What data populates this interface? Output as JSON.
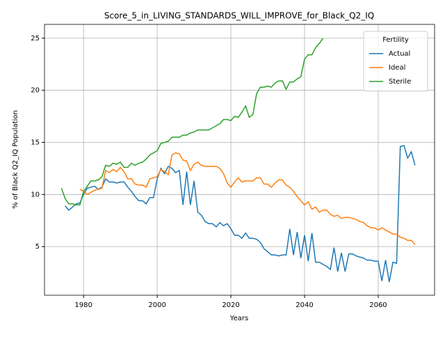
{
  "chart_data": {
    "type": "line",
    "title": "Score_5_in_LIVING_STANDARDS_WILL_IMPROVE_for_Black_Q2_IQ",
    "xlabel": "Years",
    "ylabel": "% of Black Q2_IQ Population",
    "x": [
      1974,
      1975,
      1976,
      1977,
      1978,
      1979,
      1980,
      1981,
      1982,
      1983,
      1984,
      1985,
      1986,
      1987,
      1988,
      1989,
      1990,
      1991,
      1992,
      1993,
      1994,
      1995,
      1996,
      1997,
      1998,
      1999,
      2000,
      2001,
      2002,
      2003,
      2004,
      2005,
      2006,
      2007,
      2008,
      2009,
      2010,
      2011,
      2012,
      2013,
      2014,
      2015,
      2016,
      2017,
      2018,
      2019,
      2020,
      2021,
      2022,
      2023,
      2024,
      2025,
      2026,
      2027,
      2028,
      2029,
      2030,
      2031,
      2032,
      2033,
      2034,
      2035,
      2036,
      2037,
      2038,
      2039,
      2040,
      2041,
      2042,
      2043,
      2044,
      2045,
      2046,
      2047,
      2048,
      2049,
      2050,
      2051,
      2052,
      2053,
      2054,
      2055,
      2056,
      2057,
      2058,
      2059,
      2060,
      2061,
      2062,
      2063,
      2064,
      2065,
      2066,
      2067,
      2068,
      2069,
      2070
    ],
    "series": [
      {
        "name": "Actual",
        "color": "#1f77b4",
        "values": [
          null,
          8.9,
          8.5,
          8.8,
          9.1,
          9.2,
          10.0,
          10.6,
          10.7,
          10.8,
          10.5,
          10.7,
          11.5,
          11.2,
          11.2,
          11.1,
          11.2,
          11.2,
          10.7,
          10.3,
          9.8,
          9.4,
          9.4,
          9.1,
          9.7,
          9.7,
          11.5,
          12.5,
          12.0,
          12.7,
          12.5,
          12.1,
          12.3,
          9.0,
          12.2,
          9.0,
          11.3,
          8.3,
          8.0,
          7.4,
          7.2,
          7.2,
          6.9,
          7.3,
          7.0,
          7.2,
          6.7,
          6.1,
          6.1,
          5.8,
          6.3,
          5.8,
          5.8,
          5.7,
          5.4,
          4.8,
          4.5,
          4.2,
          4.2,
          4.1,
          4.2,
          4.2,
          6.7,
          4.2,
          6.4,
          3.9,
          6.1,
          3.6,
          6.3,
          3.5,
          3.5,
          3.3,
          3.1,
          2.8,
          4.9,
          2.6,
          4.4,
          2.6,
          4.3,
          4.3,
          4.1,
          4.0,
          3.9,
          3.7,
          3.7,
          3.6,
          3.6,
          1.7,
          3.7,
          1.6,
          3.5,
          3.4,
          14.6,
          14.7,
          13.5,
          14.1,
          12.8
        ]
      },
      {
        "name": "Ideal",
        "color": "#ff7f0e",
        "values": [
          null,
          null,
          null,
          null,
          null,
          10.5,
          10.3,
          10.0,
          10.2,
          10.4,
          10.5,
          10.6,
          12.3,
          12.1,
          12.4,
          12.2,
          12.6,
          12.2,
          11.5,
          11.5,
          11.0,
          10.9,
          10.9,
          10.7,
          11.5,
          11.6,
          11.7,
          12.4,
          12.2,
          11.9,
          13.8,
          14.0,
          13.9,
          13.3,
          13.2,
          12.3,
          12.9,
          13.1,
          12.8,
          12.7,
          12.7,
          12.7,
          12.7,
          12.5,
          12.0,
          11.1,
          10.7,
          11.2,
          11.6,
          11.2,
          11.3,
          11.3,
          11.3,
          11.6,
          11.6,
          11.0,
          11.0,
          10.7,
          11.1,
          11.4,
          11.4,
          10.9,
          10.7,
          10.3,
          9.8,
          9.4,
          9.0,
          9.3,
          8.6,
          8.8,
          8.3,
          8.5,
          8.5,
          8.1,
          7.9,
          8.0,
          7.7,
          7.8,
          7.8,
          7.7,
          7.6,
          7.4,
          7.3,
          7.0,
          6.8,
          6.8,
          6.6,
          6.8,
          6.6,
          6.4,
          6.2,
          6.2,
          5.9,
          5.8,
          5.6,
          5.6,
          5.2
        ]
      },
      {
        "name": "Sterile",
        "color": "#2ca02c",
        "values": [
          10.6,
          9.6,
          9.1,
          9.1,
          9.0,
          9.0,
          10.3,
          10.8,
          11.3,
          11.3,
          11.4,
          11.7,
          12.8,
          12.7,
          13.0,
          12.9,
          13.1,
          12.6,
          12.6,
          13.0,
          12.8,
          13.0,
          13.1,
          13.4,
          13.8,
          14.0,
          14.2,
          14.9,
          15.0,
          15.1,
          15.5,
          15.5,
          15.5,
          15.7,
          15.7,
          15.9,
          16.0,
          16.2,
          16.2,
          16.2,
          16.2,
          16.4,
          16.6,
          16.8,
          17.2,
          17.2,
          17.1,
          17.5,
          17.4,
          17.9,
          18.5,
          17.4,
          17.7,
          19.7,
          20.3,
          20.3,
          20.4,
          20.3,
          20.7,
          20.9,
          20.9,
          20.1,
          20.8,
          20.8,
          21.1,
          21.3,
          23.0,
          23.4,
          23.4,
          24.1,
          24.5,
          25.0,
          null,
          null,
          null,
          null,
          null,
          null,
          null,
          null,
          null,
          null,
          null,
          null,
          null,
          null,
          null,
          null,
          null,
          null,
          null,
          null,
          null,
          null,
          null,
          null,
          null
        ]
      }
    ],
    "xlim": [
      1969.4,
      2075.3
    ],
    "xticks": [
      1980,
      2000,
      2020,
      2040,
      2060
    ],
    "ylim": [
      0.33,
      26.33
    ],
    "yticks": [
      5,
      10,
      15,
      20,
      25
    ],
    "grid": true,
    "legend_title": "Fertility",
    "legend_loc": "upper right"
  }
}
